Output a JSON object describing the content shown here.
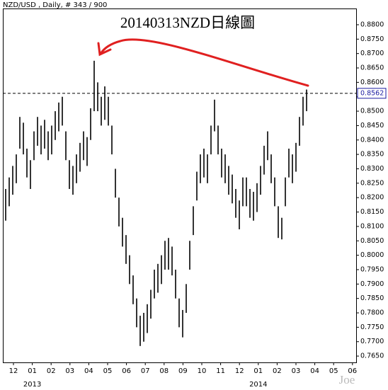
{
  "chart_data": {
    "type": "range_bar",
    "header": "NZD/USD , Daily, # 343 / 900",
    "title": "20140313NZD日線圖",
    "watermark": "Joe",
    "color": "#000000",
    "annotation_color": "#e02020",
    "high": [
      0.823,
      0.827,
      0.831,
      0.835,
      0.848,
      0.846,
      0.837,
      0.833,
      0.843,
      0.848,
      0.845,
      0.847,
      0.843,
      0.845,
      0.85,
      0.853,
      0.855,
      0.843,
      0.833,
      0.831,
      0.835,
      0.839,
      0.843,
      0.841,
      0.851,
      0.8675,
      0.86,
      0.855,
      0.8586,
      0.855,
      0.845,
      0.83,
      0.82,
      0.813,
      0.807,
      0.8,
      0.793,
      0.785,
      0.779,
      0.78,
      0.783,
      0.788,
      0.795,
      0.797,
      0.8,
      0.805,
      0.806,
      0.803,
      0.795,
      0.785,
      0.781,
      0.79,
      0.805,
      0.817,
      0.829,
      0.835,
      0.837,
      0.835,
      0.845,
      0.854,
      0.845,
      0.837,
      0.835,
      0.831,
      0.828,
      0.823,
      0.819,
      0.827,
      0.827,
      0.823,
      0.822,
      0.825,
      0.831,
      0.838,
      0.843,
      0.835,
      0.827,
      0.817,
      0.813,
      0.827,
      0.837,
      0.835,
      0.839,
      0.848,
      0.855,
      0.8575
    ],
    "low": [
      0.812,
      0.817,
      0.821,
      0.825,
      0.837,
      0.835,
      0.827,
      0.823,
      0.833,
      0.838,
      0.835,
      0.837,
      0.833,
      0.835,
      0.84,
      0.843,
      0.845,
      0.833,
      0.823,
      0.821,
      0.825,
      0.829,
      0.833,
      0.831,
      0.84,
      0.85,
      0.85,
      0.845,
      0.847,
      0.845,
      0.835,
      0.82,
      0.81,
      0.803,
      0.797,
      0.79,
      0.783,
      0.775,
      0.7685,
      0.77,
      0.773,
      0.778,
      0.785,
      0.787,
      0.79,
      0.795,
      0.795,
      0.793,
      0.785,
      0.775,
      0.7715,
      0.78,
      0.795,
      0.807,
      0.819,
      0.825,
      0.827,
      0.825,
      0.835,
      0.843,
      0.835,
      0.827,
      0.825,
      0.821,
      0.818,
      0.813,
      0.809,
      0.817,
      0.817,
      0.813,
      0.812,
      0.815,
      0.821,
      0.828,
      0.833,
      0.825,
      0.817,
      0.806,
      0.8055,
      0.817,
      0.827,
      0.825,
      0.829,
      0.838,
      0.845,
      0.85
    ],
    "current_price": {
      "value": 0.8562,
      "label": "0.8562"
    },
    "month_labels": [
      "12",
      "01",
      "02",
      "03",
      "04",
      "05",
      "06",
      "07",
      "08",
      "09",
      "10",
      "11",
      "12",
      "01",
      "02",
      "03",
      "04",
      "05",
      "06"
    ],
    "year_labels": [
      "2013",
      "2014"
    ],
    "ylim": [
      0.7633,
      0.8849
    ],
    "yticks": [
      {
        "value": 0.765,
        "label": "0.7650"
      },
      {
        "value": 0.77,
        "label": "0.7700"
      },
      {
        "value": 0.775,
        "label": "0.7750"
      },
      {
        "value": 0.78,
        "label": "0.7800"
      },
      {
        "value": 0.785,
        "label": "0.7850"
      },
      {
        "value": 0.79,
        "label": "0.7900"
      },
      {
        "value": 0.795,
        "label": "0.7950"
      },
      {
        "value": 0.8,
        "label": "0.8000"
      },
      {
        "value": 0.805,
        "label": "0.8050"
      },
      {
        "value": 0.81,
        "label": "0.8100"
      },
      {
        "value": 0.815,
        "label": "0.8150"
      },
      {
        "value": 0.82,
        "label": "0.8200"
      },
      {
        "value": 0.825,
        "label": "0.8250"
      },
      {
        "value": 0.83,
        "label": "0.8300"
      },
      {
        "value": 0.835,
        "label": "0.8350"
      },
      {
        "value": 0.84,
        "label": "0.8400"
      },
      {
        "value": 0.845,
        "label": "0.8450"
      },
      {
        "value": 0.85,
        "label": "0.8500"
      },
      {
        "value": 0.855,
        "label": "0.8550"
      },
      {
        "value": 0.86,
        "label": "0.8600"
      },
      {
        "value": 0.865,
        "label": "0.8650"
      },
      {
        "value": 0.87,
        "label": "0.8700"
      },
      {
        "value": 0.875,
        "label": "0.8750"
      },
      {
        "value": 0.88,
        "label": "0.8800"
      }
    ]
  }
}
